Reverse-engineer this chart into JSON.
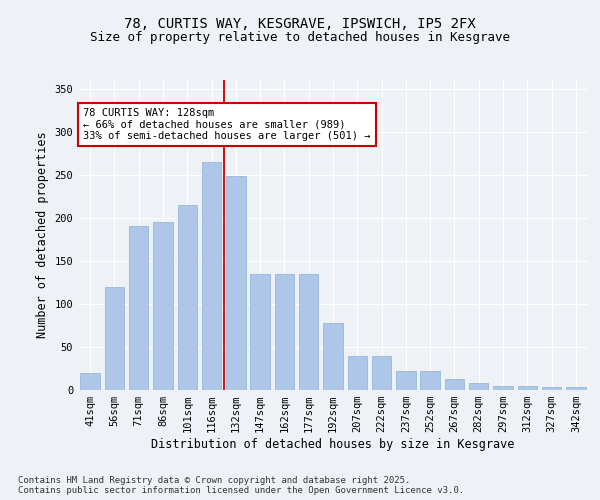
{
  "title": "78, CURTIS WAY, KESGRAVE, IPSWICH, IP5 2FX",
  "subtitle": "Size of property relative to detached houses in Kesgrave",
  "xlabel": "Distribution of detached houses by size in Kesgrave",
  "ylabel": "Number of detached properties",
  "categories": [
    "41sqm",
    "56sqm",
    "71sqm",
    "86sqm",
    "101sqm",
    "116sqm",
    "132sqm",
    "147sqm",
    "162sqm",
    "177sqm",
    "192sqm",
    "207sqm",
    "222sqm",
    "237sqm",
    "252sqm",
    "267sqm",
    "282sqm",
    "297sqm",
    "312sqm",
    "327sqm",
    "342sqm"
  ],
  "values": [
    20,
    120,
    190,
    195,
    215,
    265,
    248,
    135,
    135,
    135,
    78,
    40,
    40,
    22,
    22,
    13,
    8,
    5,
    5,
    3,
    3
  ],
  "bar_color": "#aec6e8",
  "bar_edge_color": "#8ab4d4",
  "vline_color": "#cc0000",
  "background_color": "#eef2f7",
  "annotation_text": "78 CURTIS WAY: 128sqm\n← 66% of detached houses are smaller (989)\n33% of semi-detached houses are larger (501) →",
  "annotation_box_color": "#ffffff",
  "annotation_box_edge_color": "#cc0000",
  "ylim": [
    0,
    360
  ],
  "yticks": [
    0,
    50,
    100,
    150,
    200,
    250,
    300,
    350
  ],
  "footer_text": "Contains HM Land Registry data © Crown copyright and database right 2025.\nContains public sector information licensed under the Open Government Licence v3.0.",
  "title_fontsize": 10,
  "subtitle_fontsize": 9,
  "xlabel_fontsize": 8.5,
  "ylabel_fontsize": 8.5,
  "tick_fontsize": 7.5,
  "annotation_fontsize": 7.5,
  "footer_fontsize": 6.5
}
